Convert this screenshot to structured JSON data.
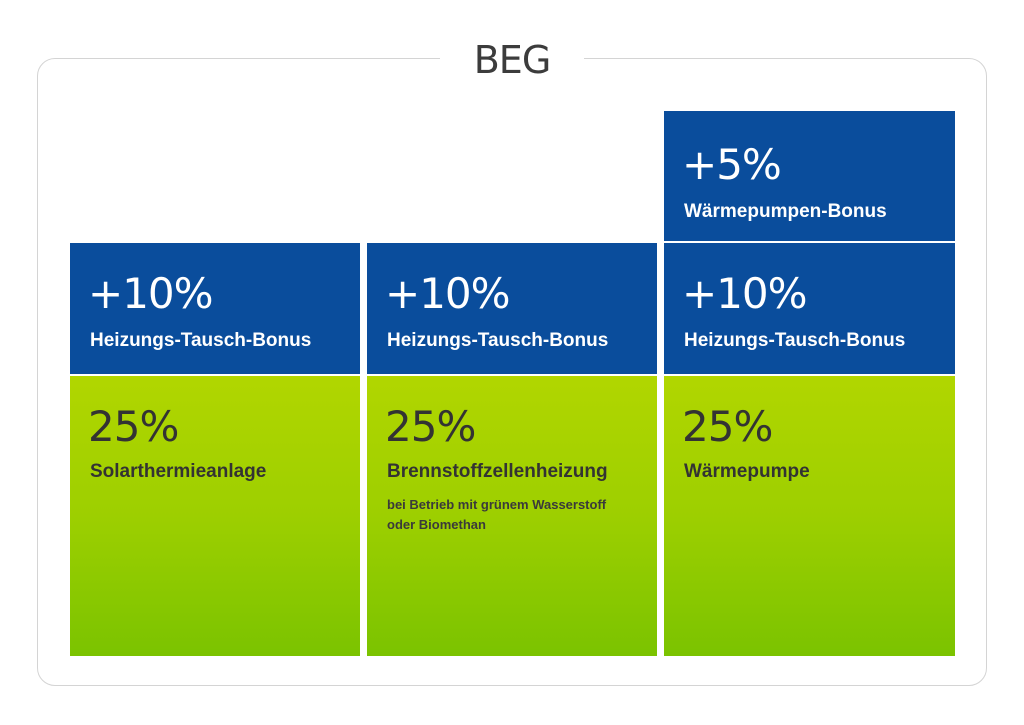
{
  "title": "BEG",
  "columns": [
    {
      "bonuses": [
        {
          "percent": "+10%",
          "label": "Heizungs-Tausch-Bonus"
        }
      ],
      "base": {
        "percent": "25%",
        "label": "Solarthermieanlage",
        "note_lines": []
      }
    },
    {
      "bonuses": [
        {
          "percent": "+10%",
          "label": "Heizungs-Tausch-Bonus"
        }
      ],
      "base": {
        "percent": "25%",
        "label": "Brennstoffzellenheizung",
        "note_lines": [
          "bei Betrieb mit grünem Wasserstoff",
          "oder Biomethan"
        ]
      }
    },
    {
      "bonuses": [
        {
          "percent": "+5%",
          "label": "Wärmepumpen-Bonus"
        },
        {
          "percent": "+10%",
          "label": "Heizungs-Tausch-Bonus"
        }
      ],
      "base": {
        "percent": "25%",
        "label": "Wärmepumpe",
        "note_lines": []
      }
    }
  ],
  "colors": {
    "bonus_blue": "#0a4d9c",
    "base_green_top": "#b1d600",
    "base_green_bottom": "#7bc300",
    "frame_border": "#d4d4d4"
  }
}
